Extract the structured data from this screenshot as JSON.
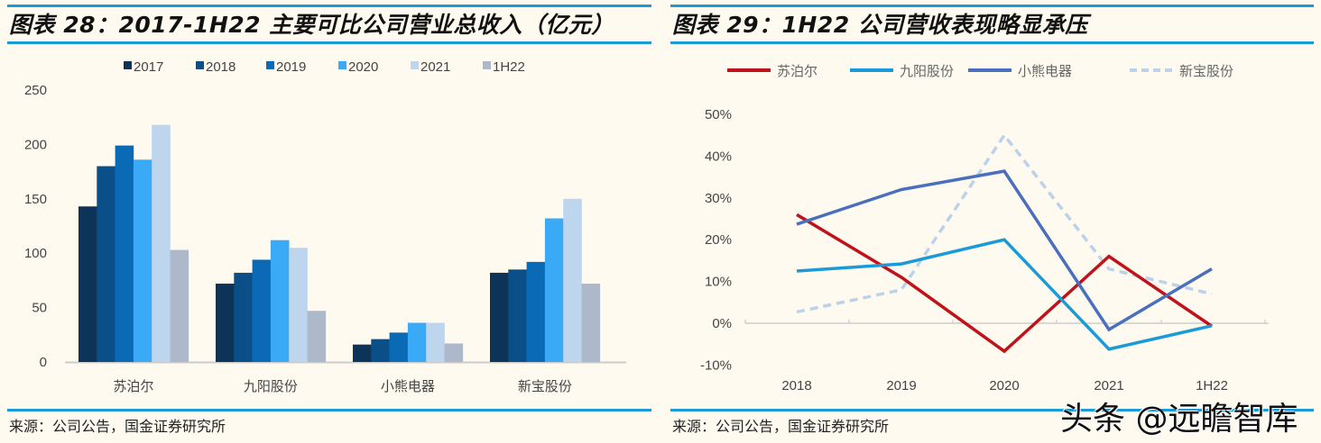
{
  "left": {
    "title": "图表 28：2017-1H22 主要可比公司营业总收入（亿元）",
    "source": "来源：公司公告，国金证券研究所"
  },
  "right": {
    "title": "图表 29：1H22 公司营收表现略显承压",
    "source": "来源：公司公告，国金证券研究所"
  },
  "watermark": "头条 @远瞻智库",
  "colors": {
    "rule": "#1a9ad6",
    "bars": [
      "#0d3458",
      "#0b4f88",
      "#0b6ab5",
      "#3aaaf7",
      "#bdd6ed",
      "#adb8ca"
    ],
    "lines": [
      "#c0121a",
      "#1a9ad6",
      "#4a6fbd",
      "#bcd2ea"
    ]
  },
  "chart_data": [
    {
      "type": "bar",
      "title": "图表 28：2017-1H22 主要可比公司营业总收入（亿元）",
      "categories": [
        "苏泊尔",
        "九阳股份",
        "小熊电器",
        "新宝股份"
      ],
      "series": [
        {
          "name": "2017",
          "values": [
            143,
            72,
            16,
            82
          ]
        },
        {
          "name": "2018",
          "values": [
            180,
            82,
            21,
            85
          ]
        },
        {
          "name": "2019",
          "values": [
            199,
            94,
            27,
            92
          ]
        },
        {
          "name": "2020",
          "values": [
            186,
            112,
            36,
            132
          ]
        },
        {
          "name": "2021",
          "values": [
            218,
            105,
            36,
            150
          ]
        },
        {
          "name": "1H22",
          "values": [
            103,
            47,
            17,
            72
          ]
        }
      ],
      "xlabel": "",
      "ylabel": "",
      "ylim": [
        0,
        250
      ],
      "yticks": [
        "0",
        "50",
        "100",
        "150",
        "200",
        "250"
      ],
      "legend_position": "top",
      "grid": false
    },
    {
      "type": "line",
      "title": "图表 29：1H22 公司营收表现略显承压",
      "categories": [
        "2018",
        "2019",
        "2020",
        "2021",
        "1H22"
      ],
      "series": [
        {
          "name": "苏泊尔",
          "values": [
            26,
            11,
            -6.7,
            16,
            -0.7
          ],
          "style": "solid"
        },
        {
          "name": "九阳股份",
          "values": [
            12.5,
            14.2,
            20,
            -6.2,
            -0.6
          ],
          "style": "solid"
        },
        {
          "name": "小熊电器",
          "values": [
            23.7,
            32,
            36.4,
            -1.5,
            13
          ],
          "style": "solid"
        },
        {
          "name": "新宝股份",
          "values": [
            2.7,
            8,
            45,
            13,
            7
          ],
          "style": "dashed"
        }
      ],
      "xlabel": "",
      "ylabel": "",
      "ylim": [
        -10,
        50
      ],
      "yticks": [
        "-10%",
        "0%",
        "10%",
        "20%",
        "30%",
        "40%",
        "50%"
      ],
      "unit": "%",
      "legend_position": "top",
      "grid": false
    }
  ]
}
